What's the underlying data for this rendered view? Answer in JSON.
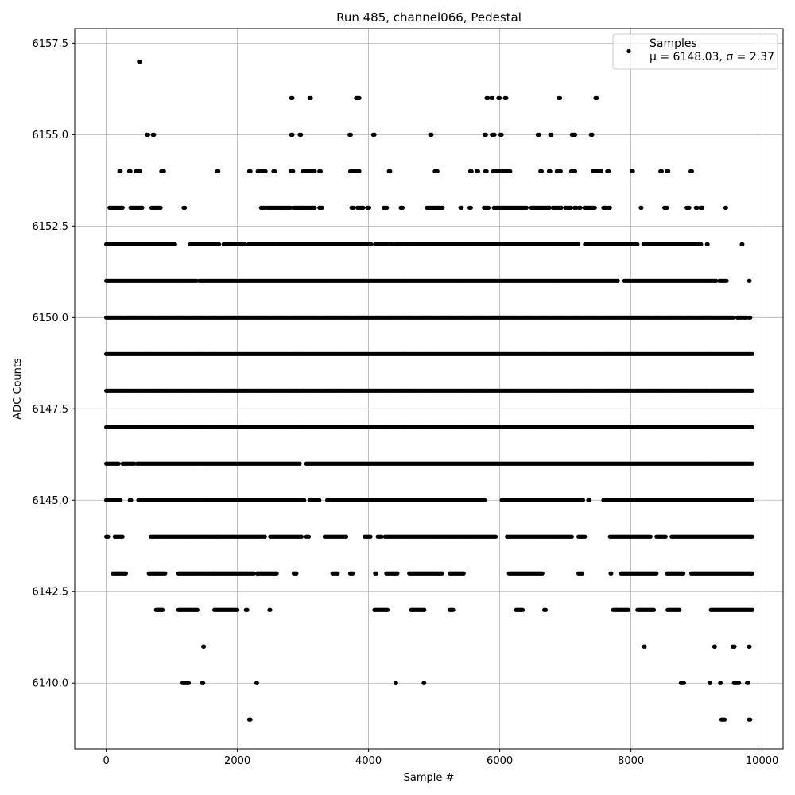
{
  "chart_data": {
    "type": "scatter",
    "title": "Run 485, channel066, Pedestal",
    "xlabel": "Sample #",
    "ylabel": "ADC Counts",
    "xlim": [
      -480,
      10320
    ],
    "ylim": [
      6138.2,
      6157.9
    ],
    "xticks": [
      0,
      2000,
      4000,
      6000,
      8000,
      10000
    ],
    "xtick_labels": [
      "0",
      "2000",
      "4000",
      "6000",
      "8000",
      "10000"
    ],
    "yticks": [
      6140.0,
      6142.5,
      6145.0,
      6147.5,
      6150.0,
      6152.5,
      6155.0,
      6157.5
    ],
    "ytick_labels": [
      "6140.0",
      "6142.5",
      "6145.0",
      "6147.5",
      "6150.0",
      "6152.5",
      "6155.0",
      "6157.5"
    ],
    "grid": true,
    "legend": {
      "placement": "top-right",
      "series_label": "Samples",
      "stats_label": "μ = 6148.03, σ = 2.37"
    },
    "series": [
      {
        "name": "Samples",
        "color": "#000000",
        "n_samples": 9840,
        "mean": 6148.03,
        "std": 2.37,
        "level_ranges": [
          {
            "y": 6139,
            "ranges": [
              [
                2180,
                2200
              ],
              [
                9380,
                9430
              ],
              [
                9800,
                9820
              ]
            ]
          },
          {
            "y": 6140,
            "ranges": [
              [
                1160,
                1260
              ],
              [
                1460,
                1480
              ],
              [
                2290,
                2300
              ],
              [
                4410,
                4420
              ],
              [
                4840,
                4850
              ],
              [
                8760,
                8810
              ],
              [
                9200,
                9210
              ],
              [
                9360,
                9370
              ],
              [
                9570,
                9650
              ],
              [
                9770,
                9790
              ]
            ]
          },
          {
            "y": 6141,
            "ranges": [
              [
                1480,
                1490
              ],
              [
                8200,
                8210
              ],
              [
                9270,
                9280
              ],
              [
                9550,
                9580
              ],
              [
                9800,
                9810
              ]
            ]
          },
          {
            "y": 6142,
            "ranges": [
              [
                760,
                860
              ],
              [
                1100,
                1390
              ],
              [
                1650,
                2000
              ],
              [
                2130,
                2150
              ],
              [
                2490,
                2500
              ],
              [
                4090,
                4290
              ],
              [
                4650,
                4850
              ],
              [
                5240,
                5290
              ],
              [
                6250,
                6350
              ],
              [
                6680,
                6700
              ],
              [
                7730,
                7960
              ],
              [
                8100,
                8350
              ],
              [
                8560,
                8740
              ],
              [
                9220,
                9850
              ]
            ]
          },
          {
            "y": 6143,
            "ranges": [
              [
                100,
                300
              ],
              [
                650,
                900
              ],
              [
                1100,
                1640
              ],
              [
                1640,
                2250
              ],
              [
                2300,
                2600
              ],
              [
                2860,
                2900
              ],
              [
                3450,
                3530
              ],
              [
                3720,
                3760
              ],
              [
                4100,
                4120
              ],
              [
                4270,
                4440
              ],
              [
                4620,
                5120
              ],
              [
                5240,
                5450
              ],
              [
                6140,
                6650
              ],
              [
                7200,
                7260
              ],
              [
                7690,
                7700
              ],
              [
                7850,
                8390
              ],
              [
                8550,
                8800
              ],
              [
                8920,
                9850
              ]
            ]
          },
          {
            "y": 6144,
            "ranges": [
              [
                0,
                30
              ],
              [
                130,
                250
              ],
              [
                680,
                1700
              ],
              [
                1700,
                2420
              ],
              [
                2500,
                2980
              ],
              [
                3050,
                3090
              ],
              [
                3330,
                3660
              ],
              [
                3940,
                4030
              ],
              [
                4140,
                4200
              ],
              [
                4250,
                5940
              ],
              [
                6110,
                7100
              ],
              [
                7200,
                7300
              ],
              [
                7680,
                8300
              ],
              [
                8390,
                8530
              ],
              [
                8620,
                9850
              ]
            ]
          },
          {
            "y": 6145,
            "ranges": [
              [
                0,
                220
              ],
              [
                360,
                380
              ],
              [
                490,
                1450
              ],
              [
                1450,
                2930
              ],
              [
                2960,
                3020
              ],
              [
                3100,
                3250
              ],
              [
                3370,
                5770
              ],
              [
                6030,
                7270
              ],
              [
                7350,
                7370
              ],
              [
                7580,
                9850
              ]
            ]
          },
          {
            "y": 6146,
            "ranges": [
              [
                0,
                190
              ],
              [
                250,
                430
              ],
              [
                470,
                2950
              ],
              [
                3050,
                9850
              ]
            ]
          },
          {
            "y": 6147,
            "ranges": [
              [
                0,
                9850
              ]
            ]
          },
          {
            "y": 6148,
            "ranges": [
              [
                0,
                9850
              ]
            ]
          },
          {
            "y": 6149,
            "ranges": [
              [
                0,
                9850
              ]
            ]
          },
          {
            "y": 6150,
            "ranges": [
              [
                0,
                9560
              ],
              [
                9620,
                9690
              ],
              [
                9720,
                9760
              ],
              [
                9800,
                9820
              ]
            ]
          },
          {
            "y": 6151,
            "ranges": [
              [
                0,
                1380
              ],
              [
                1420,
                7800
              ],
              [
                7900,
                9300
              ],
              [
                9350,
                9460
              ],
              [
                9800,
                9810
              ]
            ]
          },
          {
            "y": 6152,
            "ranges": [
              [
                0,
                1050
              ],
              [
                1280,
                1720
              ],
              [
                1790,
                2120
              ],
              [
                2170,
                2680
              ],
              [
                2700,
                4040
              ],
              [
                4100,
                4360
              ],
              [
                4410,
                7200
              ],
              [
                7300,
                8100
              ],
              [
                8190,
                9070
              ],
              [
                9160,
                9170
              ],
              [
                9690,
                9700
              ]
            ]
          },
          {
            "y": 6153,
            "ranges": [
              [
                50,
                250
              ],
              [
                370,
                550
              ],
              [
                690,
                830
              ],
              [
                1180,
                1200
              ],
              [
                2360,
                2420
              ],
              [
                2460,
                2810
              ],
              [
                2850,
                3180
              ],
              [
                3250,
                3290
              ],
              [
                3740,
                3770
              ],
              [
                3830,
                3920
              ],
              [
                3980,
                4010
              ],
              [
                4230,
                4280
              ],
              [
                4490,
                4520
              ],
              [
                4890,
                5130
              ],
              [
                5400,
                5420
              ],
              [
                5540,
                5560
              ],
              [
                5760,
                5830
              ],
              [
                5910,
                6410
              ],
              [
                6480,
                6760
              ],
              [
                6810,
                6940
              ],
              [
                7000,
                7090
              ],
              [
                7140,
                7170
              ],
              [
                7210,
                7230
              ],
              [
                7290,
                7450
              ],
              [
                7580,
                7630
              ],
              [
                7660,
                7680
              ],
              [
                8150,
                8160
              ],
              [
                8510,
                8550
              ],
              [
                8850,
                8890
              ],
              [
                8990,
                9010
              ],
              [
                9060,
                9090
              ],
              [
                9440,
                9450
              ]
            ]
          },
          {
            "y": 6154,
            "ranges": [
              [
                200,
                220
              ],
              [
                350,
                370
              ],
              [
                450,
                520
              ],
              [
                840,
                880
              ],
              [
                1690,
                1710
              ],
              [
                2180,
                2200
              ],
              [
                2310,
                2430
              ],
              [
                2550,
                2570
              ],
              [
                2810,
                2850
              ],
              [
                3000,
                3180
              ],
              [
                3250,
                3270
              ],
              [
                3720,
                3860
              ],
              [
                4310,
                4330
              ],
              [
                5010,
                5050
              ],
              [
                5550,
                5570
              ],
              [
                5650,
                5670
              ],
              [
                5780,
                5800
              ],
              [
                5900,
                6160
              ],
              [
                6620,
                6640
              ],
              [
                6750,
                6770
              ],
              [
                6870,
                6930
              ],
              [
                7090,
                7150
              ],
              [
                7420,
                7550
              ],
              [
                7640,
                7660
              ],
              [
                8010,
                8030
              ],
              [
                8450,
                8470
              ],
              [
                8550,
                8570
              ],
              [
                8910,
                8930
              ]
            ]
          },
          {
            "y": 6155,
            "ranges": [
              [
                620,
                640
              ],
              [
                710,
                730
              ],
              [
                2820,
                2840
              ],
              [
                2950,
                2970
              ],
              [
                3710,
                3730
              ],
              [
                4070,
                4090
              ],
              [
                4940,
                4960
              ],
              [
                5770,
                5790
              ],
              [
                5880,
                5920
              ],
              [
                6010,
                6030
              ],
              [
                6580,
                6600
              ],
              [
                6770,
                6790
              ],
              [
                7100,
                7150
              ],
              [
                7390,
                7410
              ]
            ]
          },
          {
            "y": 6156,
            "ranges": [
              [
                2820,
                2840
              ],
              [
                3100,
                3120
              ],
              [
                3810,
                3860
              ],
              [
                5800,
                5820
              ],
              [
                5870,
                5890
              ],
              [
                5980,
                6000
              ],
              [
                6080,
                6100
              ],
              [
                6900,
                6920
              ],
              [
                7460,
                7480
              ]
            ]
          },
          {
            "y": 6157,
            "ranges": [
              [
                500,
                520
              ]
            ]
          }
        ]
      }
    ]
  }
}
